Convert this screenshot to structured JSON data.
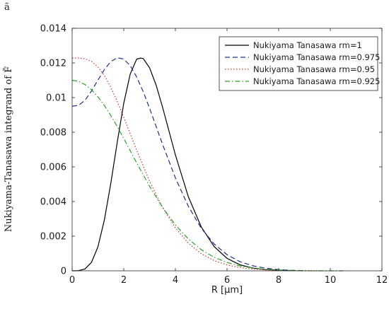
{
  "chart_data": {
    "type": "line",
    "corner_label": "ã",
    "xlabel": "R [μm]",
    "ylabel": "Nukiyama-Tanasawa integrand of F̃",
    "xlim": [
      0,
      12
    ],
    "ylim": [
      0,
      0.014
    ],
    "xticks": [
      0,
      2,
      4,
      6,
      8,
      10,
      12
    ],
    "xtick_labels": [
      "0",
      "2",
      "4",
      "6",
      "8",
      "10",
      "12"
    ],
    "yticks": [
      0,
      0.002,
      0.004,
      0.006,
      0.008,
      0.01,
      0.012,
      0.014
    ],
    "ytick_labels": [
      "0",
      "0.002",
      "0.004",
      "0.006",
      "0.008",
      "0.01",
      "0.012",
      "0.014"
    ],
    "grid": false,
    "legend_position": "top-right",
    "series": [
      {
        "name": "Nukiyama Tanasawa rm=1",
        "color": "#000000",
        "style": "solid",
        "x": [
          0,
          0.25,
          0.5,
          0.75,
          1,
          1.25,
          1.5,
          1.75,
          2,
          2.25,
          2.5,
          2.65,
          2.75,
          3,
          3.25,
          3.5,
          3.75,
          4,
          4.5,
          5,
          5.5,
          6,
          6.5,
          7,
          7.5,
          8,
          8.5
        ],
        "y": [
          0,
          1e-05,
          0.00011,
          0.00049,
          0.00139,
          0.00295,
          0.00507,
          0.00745,
          0.00968,
          0.01136,
          0.01222,
          0.01228,
          0.01226,
          0.01172,
          0.01073,
          0.00946,
          0.00807,
          0.00669,
          0.00428,
          0.00254,
          0.0014,
          0.00072,
          0.00035,
          0.00016,
          7e-05,
          3e-05,
          1e-05
        ]
      },
      {
        "name": "Nukiyama Tanasawa rm=0.975",
        "color": "#1f2f8c",
        "style": "dashed",
        "x": [
          0,
          0.25,
          0.5,
          0.75,
          1,
          1.25,
          1.5,
          1.75,
          2,
          2.25,
          2.5,
          2.75,
          3,
          3.5,
          4,
          4.5,
          5,
          5.5,
          6,
          6.5,
          7,
          7.5,
          8,
          8.5,
          9
        ],
        "y": [
          0.0095,
          0.00955,
          0.00985,
          0.01038,
          0.01101,
          0.01162,
          0.01208,
          0.0123,
          0.01222,
          0.01184,
          0.01119,
          0.01035,
          0.00938,
          0.00731,
          0.00536,
          0.00373,
          0.00246,
          0.00155,
          0.00093,
          0.00053,
          0.00029,
          0.00015,
          7e-05,
          3e-05,
          1e-05
        ]
      },
      {
        "name": "Nukiyama Tanasawa rm=0.95",
        "color": "#c0392b",
        "style": "dotted",
        "x": [
          0,
          0.25,
          0.5,
          0.75,
          1,
          1.25,
          1.5,
          1.75,
          2,
          2.25,
          2.5,
          3,
          3.5,
          4,
          4.5,
          5,
          5.5,
          6,
          6.5,
          7,
          7.5,
          8,
          8.5,
          9,
          9.5
        ],
        "y": [
          0.01228,
          0.01228,
          0.01224,
          0.01209,
          0.01177,
          0.01127,
          0.01059,
          0.00977,
          0.00886,
          0.00791,
          0.00696,
          0.00517,
          0.00366,
          0.00248,
          0.0016,
          0.00099,
          0.00059,
          0.00034,
          0.00019,
          0.0001,
          5e-05,
          2e-05,
          1e-05,
          0.0,
          0.0
        ]
      },
      {
        "name": "Nukiyama Tanasawa rm=0.925",
        "color": "#2ca02c",
        "style": "dashdot",
        "x": [
          0,
          0.25,
          0.5,
          0.75,
          1,
          1.25,
          1.5,
          1.75,
          2,
          2.5,
          3,
          3.5,
          4,
          4.5,
          5,
          5.5,
          6,
          6.5,
          7,
          7.5,
          8,
          8.5,
          9,
          9.5,
          10,
          10.5
        ],
        "y": [
          0.011,
          0.01094,
          0.01075,
          0.01045,
          0.01004,
          0.00954,
          0.00896,
          0.00832,
          0.00764,
          0.00623,
          0.00488,
          0.00367,
          0.00265,
          0.00184,
          0.00122,
          0.00078,
          0.00048,
          0.00028,
          0.00016,
          9e-05,
          5e-05,
          2e-05,
          1e-05,
          0.0,
          0.0,
          0.0
        ]
      }
    ]
  }
}
